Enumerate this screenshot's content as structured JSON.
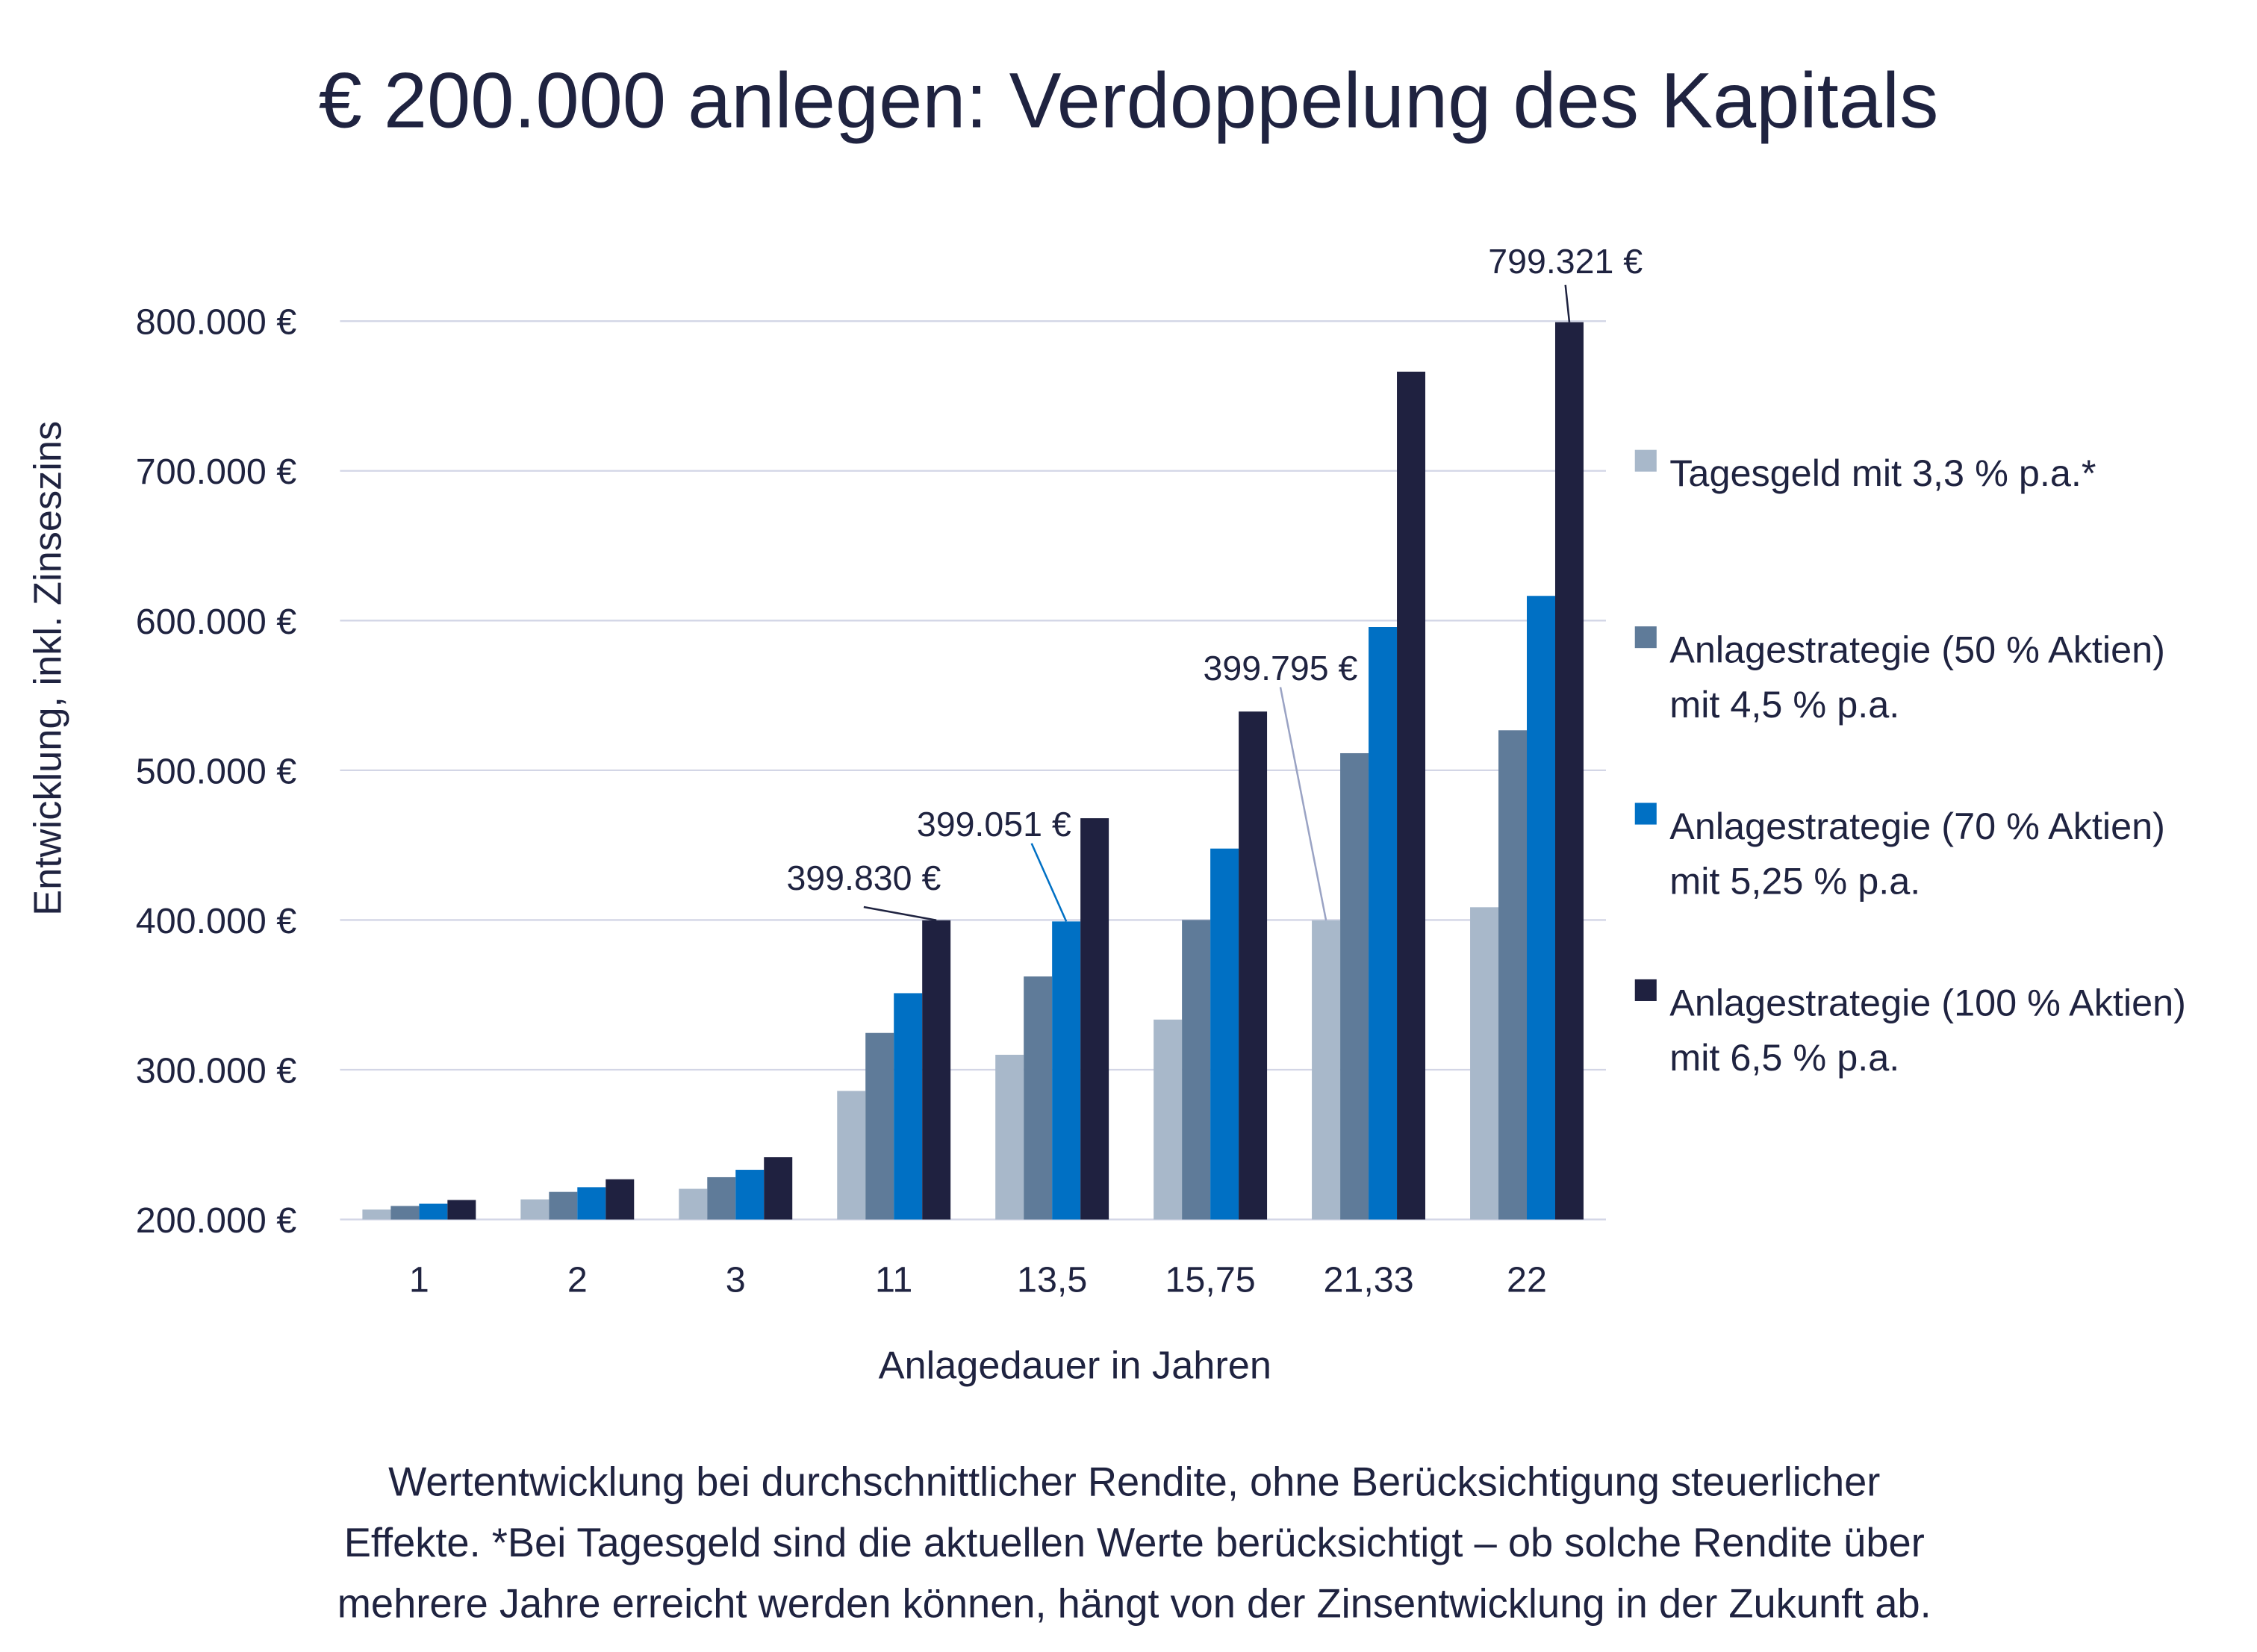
{
  "chart_data": {
    "type": "bar",
    "title": "€ 200.000 anlegen: Verdoppelung des Kapitals",
    "xlabel": "Anlagedauer in Jahren",
    "ylabel": "Entwicklung, inkl. Zinseszins",
    "ylim": [
      200000,
      800000
    ],
    "yticks": [
      200000,
      300000,
      400000,
      500000,
      600000,
      700000,
      800000
    ],
    "ytick_labels": [
      "200.000 €",
      "300.000 €",
      "400.000 €",
      "500.000 €",
      "600.000 €",
      "700.000 €",
      "800.000 €"
    ],
    "grid": true,
    "legend_placement": "right",
    "categories": [
      "1",
      "2",
      "3",
      "11",
      "13,5",
      "15,75",
      "21,33",
      "22"
    ],
    "series": [
      {
        "name": "Tagesgeld mit 3,3 % p.a.*",
        "legend_lines": [
          "Tagesgeld mit 3,3 % p.a.*"
        ],
        "color": "#a8b8ca",
        "values": [
          206600,
          213422,
          220465,
          285860,
          310008,
          333508,
          399795,
          408542
        ]
      },
      {
        "name": "Anlagestrategie (50 % Aktien) mit 4,5 % p.a.",
        "legend_lines": [
          "Anlagestrategie (50 % Aktien)",
          "mit 4,5 % p.a."
        ],
        "color": "#5f7b99",
        "values": [
          209000,
          218405,
          228233,
          324580,
          362306,
          400050,
          511426,
          526730
        ]
      },
      {
        "name": "Anlagestrategie (70 % Aktien) mit 5,25 % p.a.",
        "legend_lines": [
          "Anlagestrategie (70 % Aktien)",
          "mit 5,25 % p.a."
        ],
        "color": "#0070c4",
        "values": [
          210500,
          221551,
          233184,
          351138,
          399051,
          447732,
          595676,
          616498
        ]
      },
      {
        "name": "Anlagestrategie (100 % Aktien) mit 6,5 % p.a.",
        "legend_lines": [
          "Anlagestrategie (100 % Aktien)",
          "mit 6,5 % p.a."
        ],
        "color": "#1f2140",
        "values": [
          213000,
          226845,
          241590,
          399830,
          467992,
          539246,
          766262,
          799321
        ]
      }
    ],
    "annotations": [
      {
        "text": "399.830 €",
        "series": 3,
        "category": "11",
        "line_color": "#1f2340"
      },
      {
        "text": "399.051 €",
        "series": 2,
        "category": "13,5",
        "line_color": "#0070c4"
      },
      {
        "text": "399.795 €",
        "series": 0,
        "category": "21,33",
        "line_color": "#9aa3c4"
      },
      {
        "text": "799.321 €",
        "series": 3,
        "category": "22",
        "line_color": "#1f2340"
      }
    ],
    "footnote": [
      "Wertentwicklung bei durchschnittlicher Rendite, ohne Berücksichtigung steuerlicher",
      "Effekte. *Bei Tagesgeld sind die aktuellen Werte berücksichtigt – ob solche Rendite über",
      "mehrere Jahre erreicht werden können, hängt von der Zinsentwicklung in der Zukunft ab."
    ]
  },
  "colors": {
    "text": "#1f2340",
    "grid": "#d3d6e6"
  }
}
